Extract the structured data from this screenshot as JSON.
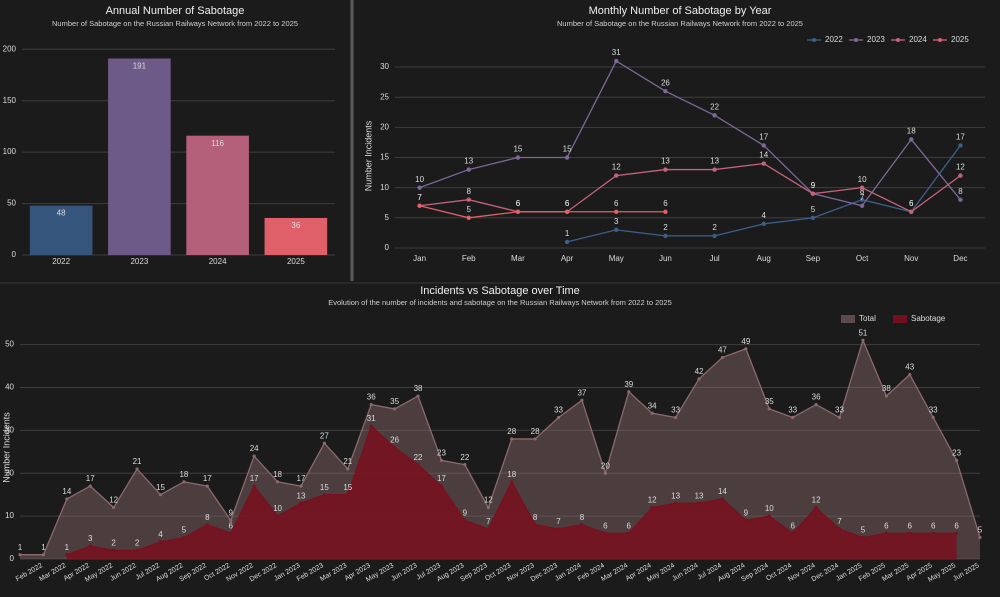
{
  "chart_data": [
    {
      "type": "bar",
      "title": "Annual Number of Sabotage",
      "subtitle": "Number of Sabotage on the Russian Railways Network from 2022 to 2025",
      "categories": [
        "2022",
        "2023",
        "2024",
        "2025"
      ],
      "values": [
        48,
        191,
        116,
        36
      ],
      "colors": [
        "#35557c",
        "#6e5a88",
        "#b4607a",
        "#e0606a"
      ],
      "ylim": [
        0,
        209
      ],
      "yticks": [
        0,
        50,
        100,
        150,
        200
      ],
      "grid": true
    },
    {
      "type": "line",
      "title": "Monthly Number of Sabotage by Year",
      "subtitle": "Number of Sabotage on the Russian Railways Network from 2022 to 2025",
      "ylabel": "Number Incidents",
      "categories": [
        "Jan",
        "Feb",
        "Mar",
        "Apr",
        "May",
        "Jun",
        "Jul",
        "Aug",
        "Sep",
        "Oct",
        "Nov",
        "Dec"
      ],
      "series": [
        {
          "name": "2022",
          "color": "#3d5f8a",
          "values": [
            null,
            null,
            null,
            1,
            3,
            2,
            2,
            4,
            5,
            8,
            6,
            17
          ]
        },
        {
          "name": "2023",
          "color": "#7e6898",
          "values": [
            10,
            13,
            15,
            15,
            31,
            26,
            22,
            17,
            9,
            7,
            18,
            8
          ]
        },
        {
          "name": "2024",
          "color": "#c4647c",
          "values": [
            7,
            8,
            6,
            6,
            12,
            13,
            13,
            14,
            9,
            10,
            6,
            12
          ]
        },
        {
          "name": "2025",
          "color": "#e0606a",
          "values": [
            7,
            5,
            6,
            6,
            6,
            6,
            null,
            null,
            null,
            null,
            null,
            null
          ]
        }
      ],
      "ylim": [
        -1.5,
        32
      ],
      "yticks": [
        0,
        5,
        10,
        15,
        20,
        25,
        30
      ],
      "grid": true,
      "legend": "top-right"
    },
    {
      "type": "area",
      "title": "Incidents vs Sabotage over Time",
      "subtitle": "Evolution of the number of incidents and sabotage on the Russian Railways Network from 2022 to 2025",
      "ylabel": "Number Incidents",
      "categories": [
        "Feb 2022",
        "Mar 2022",
        "Apr 2022",
        "May 2022",
        "Jun 2022",
        "Jul 2022",
        "Aug 2022",
        "Sep 2022",
        "Oct 2022",
        "Nov 2022",
        "Dec 2022",
        "Jan 2023",
        "Feb 2023",
        "Mar 2023",
        "Apr 2023",
        "May 2023",
        "Jun 2023",
        "Jul 2023",
        "Aug 2023",
        "Sep 2023",
        "Oct 2023",
        "Nov 2023",
        "Dec 2023",
        "Jan 2024",
        "Feb 2024",
        "Mar 2024",
        "Apr 2024",
        "May 2024",
        "Jun 2024",
        "Jul 2024",
        "Aug 2024",
        "Sep 2024",
        "Oct 2024",
        "Nov 2024",
        "Dec 2024",
        "Jan 2025",
        "Feb 2025",
        "Mar 2025",
        "Apr 2025",
        "May 2025",
        "Jun 2025",
        null
      ],
      "series": [
        {
          "name": "Total",
          "color": "#8a6a6a",
          "values": [
            1,
            1,
            14,
            17,
            12,
            21,
            15,
            18,
            17,
            9,
            24,
            18,
            17,
            27,
            21,
            36,
            35,
            38,
            23,
            22,
            12,
            28,
            28,
            33,
            37,
            20,
            39,
            34,
            33,
            42,
            47,
            49,
            35,
            33,
            36,
            33,
            51,
            38,
            43,
            33,
            23,
            5
          ]
        },
        {
          "name": "Sabotage",
          "color": "#7a0f1f",
          "values": [
            null,
            null,
            1,
            3,
            2,
            2,
            4,
            5,
            8,
            6,
            17,
            10,
            13,
            15,
            15,
            31,
            26,
            22,
            17,
            9,
            7,
            18,
            8,
            7,
            8,
            6,
            6,
            12,
            13,
            13,
            14,
            9,
            10,
            6,
            12,
            7,
            5,
            6,
            6,
            6,
            6,
            null
          ]
        }
      ],
      "ylim": [
        0,
        52
      ],
      "yticks": [
        0,
        10,
        20,
        30,
        40,
        50
      ],
      "grid": true,
      "legend": "top-right"
    }
  ]
}
